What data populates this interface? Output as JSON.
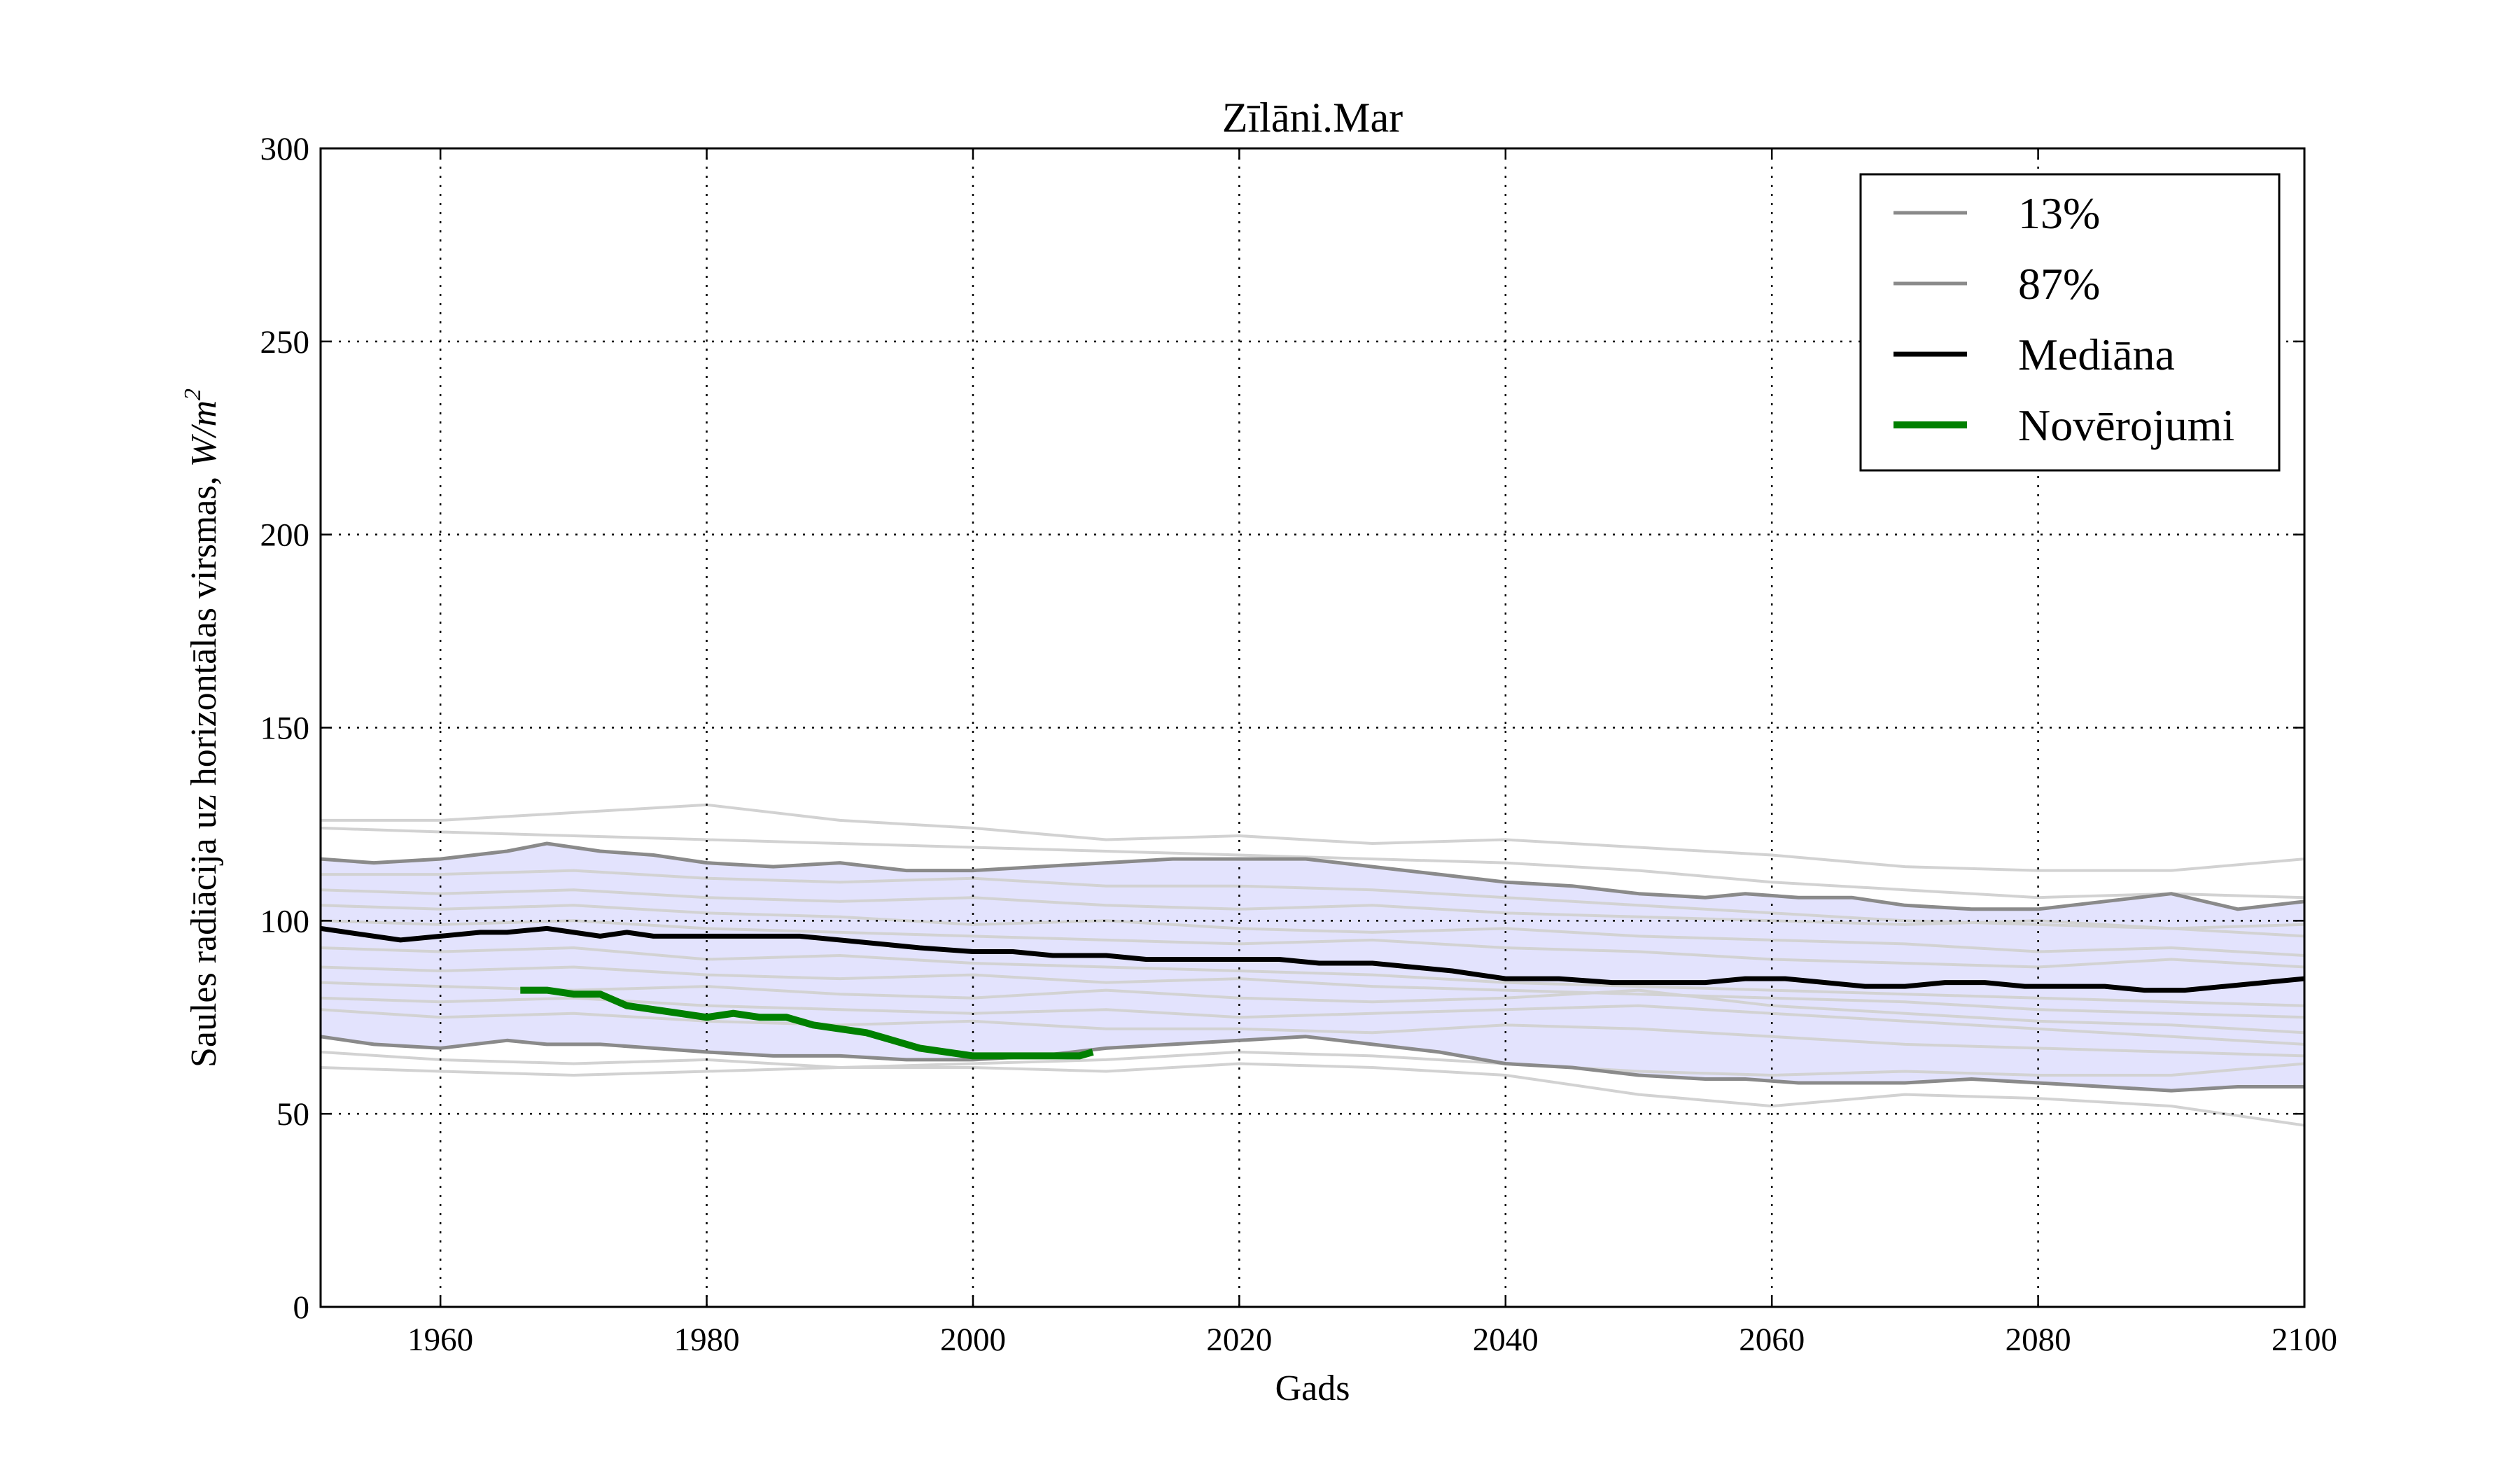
{
  "chart_data": {
    "type": "line",
    "title": "Zīlāni.Mar",
    "xlabel": "Gads",
    "ylabel": "Saules radiācija uz horizontālas virsmas, W/m²",
    "ylabel_text": "Saules radiācija uz horizontālas virsmas, ",
    "ylabel_unit_base": "W/m",
    "ylabel_unit_exp": "2",
    "xlim": [
      1951,
      2100
    ],
    "ylim": [
      0,
      300
    ],
    "xticks": [
      1960,
      1980,
      2000,
      2020,
      2040,
      2060,
      2080,
      2100
    ],
    "yticks": [
      0,
      50,
      100,
      150,
      200,
      250,
      300
    ],
    "grid": true,
    "legend_position": "top-right",
    "colors": {
      "band_fill": "#e3e3fd",
      "percentile": "#8a8a8a",
      "ensemble": "#d2d2d2",
      "median": "#000000",
      "observations": "#008000"
    },
    "band": {
      "x": [
        1951,
        1955,
        1960,
        1965,
        1968,
        1972,
        1976,
        1980,
        1985,
        1990,
        1995,
        2000,
        2005,
        2010,
        2015,
        2020,
        2025,
        2030,
        2035,
        2040,
        2045,
        2050,
        2055,
        2058,
        2062,
        2066,
        2070,
        2075,
        2080,
        2085,
        2090,
        2095,
        2100
      ],
      "lower": [
        70,
        68,
        67,
        69,
        68,
        68,
        67,
        66,
        65,
        65,
        64,
        64,
        65,
        67,
        68,
        69,
        70,
        68,
        66,
        63,
        62,
        60,
        59,
        59,
        58,
        58,
        58,
        59,
        58,
        57,
        56,
        57,
        57
      ],
      "upper": [
        116,
        115,
        116,
        118,
        120,
        118,
        117,
        115,
        114,
        115,
        113,
        113,
        114,
        115,
        116,
        116,
        116,
        114,
        112,
        110,
        109,
        107,
        106,
        107,
        106,
        106,
        104,
        103,
        103,
        105,
        107,
        103,
        105
      ]
    },
    "series": [
      {
        "name": "13%",
        "x": [
          1951,
          1955,
          1960,
          1965,
          1968,
          1972,
          1976,
          1980,
          1985,
          1990,
          1995,
          2000,
          2005,
          2010,
          2015,
          2020,
          2025,
          2030,
          2035,
          2040,
          2045,
          2050,
          2055,
          2058,
          2062,
          2066,
          2070,
          2075,
          2080,
          2085,
          2090,
          2095,
          2100
        ],
        "values": [
          70,
          68,
          67,
          69,
          68,
          68,
          67,
          66,
          65,
          65,
          64,
          64,
          65,
          67,
          68,
          69,
          70,
          68,
          66,
          63,
          62,
          60,
          59,
          59,
          58,
          58,
          58,
          59,
          58,
          57,
          56,
          57,
          57
        ]
      },
      {
        "name": "87%",
        "x": [
          1951,
          1955,
          1960,
          1965,
          1968,
          1972,
          1976,
          1980,
          1985,
          1990,
          1995,
          2000,
          2005,
          2010,
          2015,
          2020,
          2025,
          2030,
          2035,
          2040,
          2045,
          2050,
          2055,
          2058,
          2062,
          2066,
          2070,
          2075,
          2080,
          2085,
          2090,
          2095,
          2100
        ],
        "values": [
          116,
          115,
          116,
          118,
          120,
          118,
          117,
          115,
          114,
          115,
          113,
          113,
          114,
          115,
          116,
          116,
          116,
          114,
          112,
          110,
          109,
          107,
          106,
          107,
          106,
          106,
          104,
          103,
          103,
          105,
          107,
          103,
          105
        ]
      },
      {
        "name": "Mediāna",
        "x": [
          1951,
          1953,
          1955,
          1957,
          1960,
          1963,
          1965,
          1968,
          1970,
          1972,
          1974,
          1976,
          1980,
          1983,
          1987,
          1990,
          1993,
          1996,
          2000,
          2003,
          2006,
          2010,
          2013,
          2016,
          2020,
          2023,
          2026,
          2030,
          2033,
          2036,
          2038,
          2040,
          2044,
          2048,
          2052,
          2055,
          2058,
          2061,
          2064,
          2067,
          2070,
          2073,
          2076,
          2079,
          2082,
          2085,
          2088,
          2091,
          2094,
          2097,
          2100
        ],
        "values": [
          98,
          97,
          96,
          95,
          96,
          97,
          97,
          98,
          97,
          96,
          97,
          96,
          96,
          96,
          96,
          95,
          94,
          93,
          92,
          92,
          91,
          91,
          90,
          90,
          90,
          90,
          89,
          89,
          88,
          87,
          86,
          85,
          85,
          84,
          84,
          84,
          85,
          85,
          84,
          83,
          83,
          84,
          84,
          83,
          83,
          83,
          82,
          82,
          83,
          84,
          85
        ]
      },
      {
        "name": "Novērojumi",
        "x": [
          1966,
          1968,
          1970,
          1972,
          1974,
          1976,
          1978,
          1980,
          1982,
          1984,
          1986,
          1988,
          1990,
          1992,
          1994,
          1996,
          1998,
          2000,
          2002,
          2004,
          2006,
          2007,
          2008,
          2009
        ],
        "values": [
          82,
          82,
          81,
          81,
          78,
          77,
          76,
          75,
          76,
          75,
          75,
          73,
          72,
          71,
          69,
          67,
          66,
          65,
          65,
          65,
          65,
          65,
          65,
          66
        ]
      }
    ],
    "ensemble": [
      {
        "x": [
          1951,
          1960,
          1970,
          1980,
          1990,
          2000,
          2010,
          2020,
          2030,
          2040,
          2050,
          2060,
          2070,
          2080,
          2090,
          2100
        ],
        "values": [
          126,
          126,
          128,
          130,
          126,
          124,
          121,
          122,
          120,
          121,
          119,
          117,
          114,
          113,
          113,
          116
        ]
      },
      {
        "x": [
          1951,
          1960,
          1970,
          1980,
          1990,
          2000,
          2010,
          2020,
          2030,
          2040,
          2050,
          2060,
          2070,
          2080,
          2090,
          2100
        ],
        "values": [
          124,
          123,
          122,
          121,
          120,
          119,
          118,
          117,
          116,
          115,
          113,
          110,
          108,
          106,
          107,
          106
        ]
      },
      {
        "x": [
          1951,
          1960,
          1970,
          1980,
          1990,
          2000,
          2010,
          2020,
          2030,
          2040,
          2050,
          2060,
          2070,
          2080,
          2090,
          2100
        ],
        "values": [
          112,
          112,
          113,
          111,
          110,
          111,
          109,
          109,
          108,
          106,
          104,
          102,
          100,
          99,
          98,
          96
        ]
      },
      {
        "x": [
          1951,
          1960,
          1970,
          1980,
          1990,
          2000,
          2010,
          2020,
          2030,
          2040,
          2050,
          2060,
          2070,
          2080,
          2090,
          2100
        ],
        "values": [
          108,
          107,
          108,
          106,
          105,
          106,
          104,
          103,
          104,
          102,
          101,
          100,
          99,
          100,
          98,
          99
        ]
      },
      {
        "x": [
          1951,
          1960,
          1970,
          1980,
          1990,
          2000,
          2010,
          2020,
          2030,
          2040,
          2050,
          2060,
          2070,
          2080,
          2090,
          2100
        ],
        "values": [
          104,
          103,
          104,
          102,
          101,
          99,
          100,
          98,
          97,
          98,
          96,
          95,
          94,
          92,
          93,
          91
        ]
      },
      {
        "x": [
          1951,
          1960,
          1970,
          1980,
          1990,
          2000,
          2010,
          2020,
          2030,
          2040,
          2050,
          2060,
          2070,
          2080,
          2090,
          2100
        ],
        "values": [
          100,
          99,
          100,
          98,
          97,
          96,
          95,
          94,
          95,
          93,
          92,
          90,
          89,
          88,
          90,
          88
        ]
      },
      {
        "x": [
          1951,
          1960,
          1970,
          1980,
          1990,
          2000,
          2010,
          2020,
          2030,
          2040,
          2050,
          2060,
          2070,
          2080,
          2090,
          2100
        ],
        "values": [
          93,
          92,
          93,
          90,
          91,
          89,
          88,
          87,
          86,
          84,
          83,
          82,
          81,
          80,
          79,
          78
        ]
      },
      {
        "x": [
          1951,
          1960,
          1970,
          1980,
          1990,
          2000,
          2010,
          2020,
          2030,
          2040,
          2050,
          2060,
          2070,
          2080,
          2090,
          2100
        ],
        "values": [
          88,
          87,
          88,
          86,
          85,
          86,
          84,
          85,
          83,
          82,
          81,
          80,
          79,
          77,
          76,
          75
        ]
      },
      {
        "x": [
          1951,
          1960,
          1970,
          1980,
          1990,
          2000,
          2010,
          2020,
          2030,
          2040,
          2050,
          2060,
          2070,
          2080,
          2090,
          2100
        ],
        "values": [
          84,
          83,
          82,
          83,
          81,
          80,
          82,
          80,
          79,
          80,
          82,
          78,
          76,
          74,
          73,
          71
        ]
      },
      {
        "x": [
          1951,
          1960,
          1970,
          1980,
          1990,
          2000,
          2010,
          2020,
          2030,
          2040,
          2050,
          2060,
          2070,
          2080,
          2090,
          2100
        ],
        "values": [
          80,
          79,
          80,
          78,
          77,
          76,
          77,
          75,
          76,
          77,
          78,
          76,
          74,
          72,
          70,
          68
        ]
      },
      {
        "x": [
          1951,
          1960,
          1970,
          1980,
          1990,
          2000,
          2010,
          2020,
          2030,
          2040,
          2050,
          2060,
          2070,
          2080,
          2090,
          2100
        ],
        "values": [
          77,
          75,
          76,
          74,
          73,
          74,
          72,
          72,
          71,
          73,
          72,
          70,
          68,
          67,
          66,
          65
        ]
      },
      {
        "x": [
          1951,
          1960,
          1970,
          1980,
          1990,
          2000,
          2010,
          2020,
          2030,
          2040,
          2050,
          2060,
          2070,
          2080,
          2090,
          2100
        ],
        "values": [
          66,
          64,
          63,
          64,
          62,
          63,
          64,
          66,
          65,
          63,
          61,
          60,
          61,
          60,
          60,
          63
        ]
      },
      {
        "x": [
          1951,
          1960,
          1970,
          1980,
          1990,
          2000,
          2010,
          2020,
          2030,
          2040,
          2050,
          2060,
          2070,
          2080,
          2090,
          2100
        ],
        "values": [
          62,
          61,
          60,
          61,
          62,
          62,
          61,
          63,
          62,
          60,
          55,
          52,
          55,
          54,
          52,
          47
        ]
      }
    ],
    "legend": [
      {
        "label": "13%",
        "series": 0
      },
      {
        "label": "87%",
        "series": 1
      },
      {
        "label": "Mediāna",
        "series": 2
      },
      {
        "label": "Novērojumi",
        "series": 3
      }
    ]
  }
}
